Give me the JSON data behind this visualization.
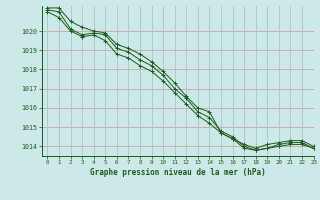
{
  "title": "Graphe pression niveau de la mer (hPa)",
  "background_color": "#cce8e8",
  "line_color": "#1a5c1a",
  "xlim": [
    -0.5,
    23
  ],
  "ylim": [
    1013.5,
    1021.3
  ],
  "yticks": [
    1014,
    1015,
    1016,
    1017,
    1018,
    1019,
    1020
  ],
  "xticks": [
    0,
    1,
    2,
    3,
    4,
    5,
    6,
    7,
    8,
    9,
    10,
    11,
    12,
    13,
    14,
    15,
    16,
    17,
    18,
    19,
    20,
    21,
    22,
    23
  ],
  "xgrid_color": "#a0c8c8",
  "ygrid_color": "#d4a0a0",
  "series": [
    [
      1021.2,
      1021.2,
      1020.5,
      1020.2,
      1020.0,
      1019.9,
      1019.3,
      1019.1,
      1018.8,
      1018.4,
      1017.9,
      1017.3,
      1016.6,
      1016.0,
      1015.8,
      1014.7,
      1014.4,
      1014.1,
      1013.9,
      1014.1,
      1014.2,
      1014.3,
      1014.3,
      1014.0
    ],
    [
      1021.1,
      1021.0,
      1020.1,
      1019.8,
      1019.9,
      1019.8,
      1019.1,
      1018.9,
      1018.5,
      1018.2,
      1017.7,
      1017.0,
      1016.5,
      1015.8,
      1015.5,
      1014.8,
      1014.5,
      1014.0,
      1013.8,
      1013.9,
      1014.1,
      1014.2,
      1014.2,
      1013.9
    ],
    [
      1021.0,
      1020.7,
      1020.0,
      1019.7,
      1019.8,
      1019.5,
      1018.8,
      1018.6,
      1018.2,
      1017.9,
      1017.4,
      1016.8,
      1016.2,
      1015.6,
      1015.2,
      1014.7,
      1014.4,
      1013.9,
      1013.8,
      1013.9,
      1014.0,
      1014.1,
      1014.1,
      1013.9
    ]
  ]
}
